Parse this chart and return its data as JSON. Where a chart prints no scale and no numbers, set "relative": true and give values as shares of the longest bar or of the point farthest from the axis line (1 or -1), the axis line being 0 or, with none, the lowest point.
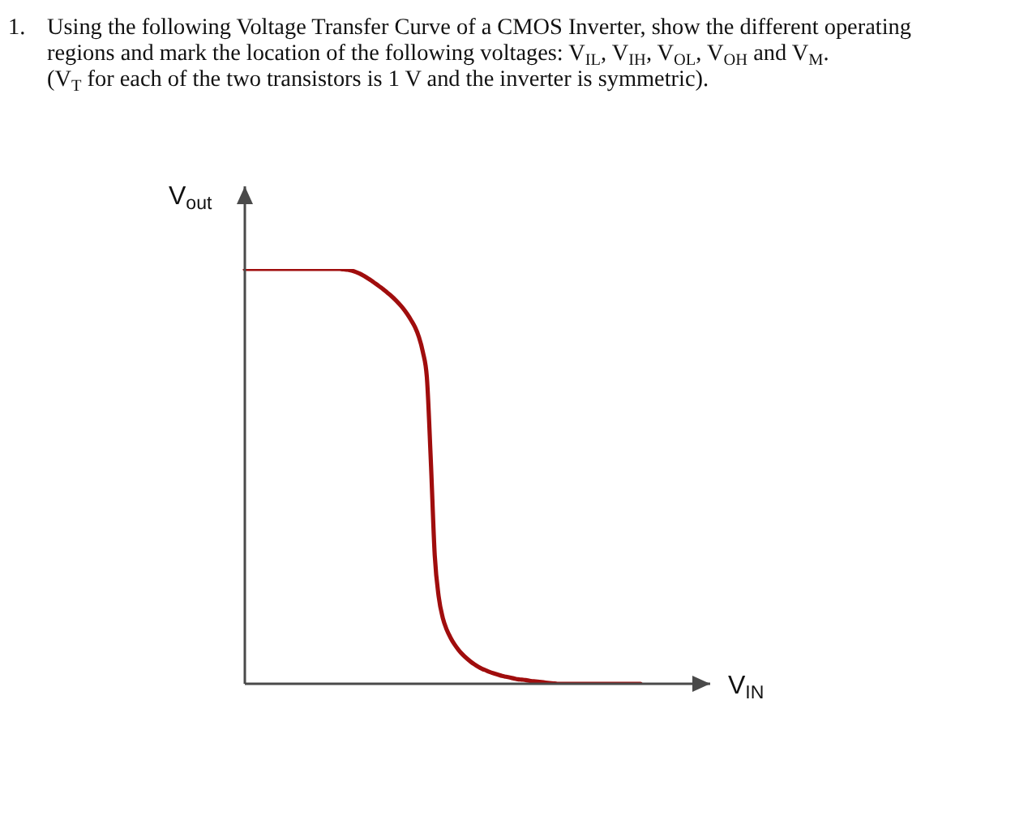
{
  "chart_data": {
    "type": "line",
    "relative": true,
    "marker": "none",
    "title": "1. Using the following Voltage Transfer Curve of a CMOS Inverter, show the different operating regions and mark the location of the following voltages: V$_{IL}$, V$_{IH}$, V$_{OL}$, V$_{OH}$ and V$_{M}$.",
    "subtitle": "(V$_{T}$ for each of the two transistors is 1 V and the inverter is symmetric).",
    "xlabel": "V$_{IN}$",
    "ylabel": "V$_{out}$",
    "categories": [
      null,
      null,
      null,
      null,
      null,
      null,
      null,
      null,
      null,
      null,
      null,
      null,
      null,
      null,
      null,
      null,
      null,
      null,
      null,
      null,
      null,
      null,
      null,
      null,
      null,
      null,
      null,
      null,
      null,
      null,
      null,
      null,
      null,
      null,
      null,
      null,
      null,
      null,
      null,
      null,
      null,
      null,
      null,
      null,
      null,
      null,
      null,
      null,
      null,
      null,
      null,
      null,
      null,
      null,
      null,
      null,
      null,
      null,
      null,
      null,
      null,
      null,
      null,
      null,
      null,
      null,
      null,
      null,
      null,
      null,
      null,
      null,
      null,
      null,
      null,
      null,
      null,
      null,
      null,
      null,
      null,
      null,
      null,
      null,
      null,
      null,
      null,
      null,
      null,
      null,
      null,
      null,
      null,
      null,
      null,
      null,
      null,
      null,
      null,
      null,
      null
    ],
    "color": "#a00d0d",
    "values": [
      1,
      1,
      1,
      1,
      1,
      1,
      1,
      1,
      1,
      1,
      1,
      1,
      1,
      1,
      1,
      1,
      1,
      1,
      1,
      1,
      1,
      1,
      1,
      1,
      1,
      0.999,
      0.998,
      0.996,
      0.993,
      0.989,
      0.984,
      0.978,
      0.972,
      0.965,
      0.958,
      0.951,
      0.943,
      0.935,
      0.926,
      0.916,
      0.905,
      0.892,
      0.877,
      0.86,
      0.836,
      0.8,
      0.74,
      0.54,
      0.31,
      0.21,
      0.16,
      0.131,
      0.111,
      0.095,
      0.082,
      0.071,
      0.062,
      0.054,
      0.047,
      0.041,
      0.036,
      0.032,
      0.028,
      0.025,
      0.022,
      0.019,
      0.017,
      0.015,
      0.013,
      0.011,
      0.01,
      0.009,
      0.007,
      0.006,
      0.005,
      0.004,
      0.003,
      0.002,
      0.001,
      0,
      0,
      0,
      0,
      0,
      0,
      0,
      0,
      0,
      0,
      0,
      0,
      0,
      0,
      0,
      0,
      0,
      0,
      0,
      0,
      0,
      0
    ]
  }
}
